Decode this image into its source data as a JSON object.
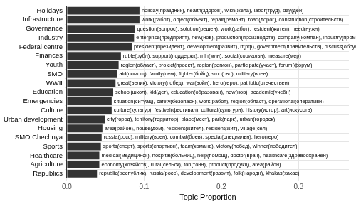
{
  "chart_data": {
    "type": "bar",
    "orientation": "horizontal",
    "x_label": "Topic Proportion",
    "categories": [
      "Holidays",
      "Infrastructure",
      "Governance",
      "Industry",
      "Federal centre",
      "Finances",
      "Youth",
      "SMO",
      "WWII",
      "Education",
      "Emergencies",
      "Culture",
      "Urban development",
      "Housing",
      "SMO Chechnya",
      "Sports",
      "Healthcare",
      "Agriculture",
      "Republics"
    ],
    "values": [
      0.094,
      0.094,
      0.088,
      0.087,
      0.084,
      0.07,
      0.067,
      0.065,
      0.063,
      0.06,
      0.058,
      0.058,
      0.049,
      0.046,
      0.045,
      0.044,
      0.042,
      0.042,
      0.039
    ],
    "annotations": [
      "holiday(праздник), health(здоров), wish(жела), labor(труд), day(ден)",
      "work(работ), object(объект), repair(ремонт), road(дорог), construction(строительств)",
      "question(вопрос), solution(решен), work(работ), resident(жител), need(нужн)",
      "enterprise(предприят), new(нов), production(производств), company(компан), industry(промышлен)",
      "president(президент), development(развит), rf(рф), government(правительств), discuss(обсужд)",
      "ruble(рубл), support(поддержк), mln(млн), social(социальн), measure(мер)",
      "region(област), project(проект), region(регион), participate(участ), forum(форум)",
      "aid(помощ), family(сем), fighter(бойц), smo(сво), military(воен)",
      "great(велик), victory(побед), war(войн), hero(геро), patriotic(отечествен)",
      "school(школ), kid(дет), education(образован), new(нов), academic(учебн)",
      "situation(ситуац), safety(безопасн), work(работ), region(област), operational(оперативн)",
      "culture(культур), festival(фестивал), cultural(культурн), history(истор), art(искусств)",
      "city(город), territory(территор), place(мест), park(парк), urban(городск)",
      "area(район), house(дом), resident(жител), resident(жит), village(сел)",
      "russia(росс), military(воен), combat(боев), special(специальн), hero(геро)",
      "sports(спорт), sports(спортивн), team(команд), victory(побед), winner(победител)",
      "medical(медицинск), hospital(больниц), help(помощ), doctor(врач), healthcare(здравоохранен)",
      "economy(хозяйств), rural(сельск), ton(тонн), product(продукц), area(район)",
      "republic(республик), russia(росс), development(развит), folk(народн), khakas(хакас)"
    ],
    "color": "#333333",
    "xlim": [
      0,
      0.365
    ],
    "xticks": [
      {
        "value": 0,
        "label": "0.0"
      },
      0.1,
      0.2,
      0.3
    ],
    "grid": true
  }
}
